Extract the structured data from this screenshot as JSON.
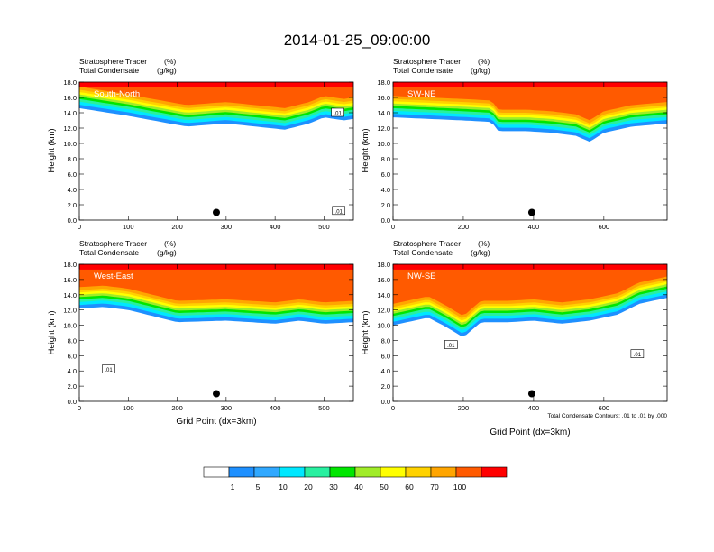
{
  "title": "2014-01-25_09:00:00",
  "panel_header": {
    "line1": "Stratosphere Tracer",
    "line1_unit": "(%)",
    "line2": "Total Condensate",
    "line2_unit": "(g/kg)"
  },
  "ylabel": "Height (km)",
  "xlabel": "Grid Point (dx=3km)",
  "contour_note": "Total Condensate Contours: .01 to .01 by .000",
  "colors": {
    "levels": [
      "#ffffff",
      "#1e90ff",
      "#30a8ff",
      "#00e8ff",
      "#28f0a0",
      "#00e600",
      "#a0ec28",
      "#ffff00",
      "#ffd200",
      "#ffa500",
      "#ff5a00",
      "#ff0000"
    ]
  },
  "colorbar": {
    "labels": [
      "1",
      "5",
      "10",
      "20",
      "30",
      "40",
      "50",
      "60",
      "70",
      "100"
    ]
  },
  "chart_data": [
    {
      "type": "heatmap",
      "name": "South-North",
      "xlim": [
        0,
        560
      ],
      "ylim": [
        0,
        18
      ],
      "xticks": [
        0,
        100,
        200,
        300,
        400,
        500
      ],
      "yticks": [
        "0.0",
        "2.0",
        "4.0",
        "6.0",
        "8.0",
        "10.0",
        "12.0",
        "14.0",
        "16.0",
        "18.0"
      ],
      "marker": {
        "x": 280,
        "y": 1.0
      },
      "contour_labels": [
        {
          "text": ".01",
          "x": 528,
          "y": 14.0
        },
        {
          "text": ".01",
          "x": 530,
          "y": 1.2
        }
      ],
      "tracer_bottom_km": [
        [
          0,
          14.6
        ],
        [
          40,
          14.2
        ],
        [
          100,
          13.6
        ],
        [
          150,
          13.0
        ],
        [
          220,
          12.2
        ],
        [
          300,
          12.6
        ],
        [
          360,
          12.2
        ],
        [
          420,
          11.8
        ],
        [
          470,
          12.6
        ],
        [
          500,
          13.4
        ],
        [
          540,
          13.0
        ],
        [
          560,
          13.2
        ]
      ]
    },
    {
      "type": "heatmap",
      "name": "SW-NE",
      "xlim": [
        0,
        780
      ],
      "ylim": [
        0,
        18
      ],
      "xticks": [
        0,
        200,
        400,
        600
      ],
      "yticks": [
        "0.0",
        "2.0",
        "4.0",
        "6.0",
        "8.0",
        "10.0",
        "12.0",
        "14.0",
        "16.0",
        "18.0"
      ],
      "marker": {
        "x": 395,
        "y": 1.0
      },
      "contour_labels": [],
      "tracer_bottom_km": [
        [
          0,
          13.4
        ],
        [
          100,
          13.2
        ],
        [
          200,
          13.0
        ],
        [
          280,
          12.8
        ],
        [
          300,
          11.6
        ],
        [
          380,
          11.6
        ],
        [
          450,
          11.4
        ],
        [
          520,
          11.0
        ],
        [
          560,
          10.2
        ],
        [
          600,
          11.4
        ],
        [
          680,
          12.2
        ],
        [
          780,
          12.6
        ]
      ]
    },
    {
      "type": "heatmap",
      "name": "West-East",
      "xlim": [
        0,
        560
      ],
      "ylim": [
        0,
        18
      ],
      "xticks": [
        0,
        100,
        200,
        300,
        400,
        500
      ],
      "yticks": [
        "0.0",
        "2.0",
        "4.0",
        "6.0",
        "8.0",
        "10.0",
        "12.0",
        "14.0",
        "16.0",
        "18.0"
      ],
      "marker": {
        "x": 280,
        "y": 1.0
      },
      "contour_labels": [
        {
          "text": ".01",
          "x": 60,
          "y": 4.2
        }
      ],
      "tracer_bottom_km": [
        [
          0,
          12.2
        ],
        [
          50,
          12.4
        ],
        [
          100,
          12.0
        ],
        [
          150,
          11.2
        ],
        [
          200,
          10.4
        ],
        [
          300,
          10.6
        ],
        [
          400,
          10.2
        ],
        [
          450,
          10.6
        ],
        [
          500,
          10.2
        ],
        [
          560,
          10.4
        ]
      ]
    },
    {
      "type": "heatmap",
      "name": "NW-SE",
      "xlim": [
        0,
        780
      ],
      "ylim": [
        0,
        18
      ],
      "xticks": [
        0,
        200,
        400,
        600
      ],
      "yticks": [
        "0.0",
        "2.0",
        "4.0",
        "6.0",
        "8.0",
        "10.0",
        "12.0",
        "14.0",
        "16.0",
        "18.0"
      ],
      "marker": {
        "x": 395,
        "y": 1.0
      },
      "contour_labels": [
        {
          "text": ".01",
          "x": 165,
          "y": 7.4
        },
        {
          "text": ".01",
          "x": 695,
          "y": 6.2
        }
      ],
      "tracer_bottom_km": [
        [
          0,
          10.0
        ],
        [
          100,
          11.0
        ],
        [
          150,
          9.8
        ],
        [
          200,
          8.4
        ],
        [
          250,
          10.4
        ],
        [
          330,
          10.4
        ],
        [
          400,
          10.6
        ],
        [
          480,
          10.2
        ],
        [
          560,
          10.6
        ],
        [
          640,
          11.4
        ],
        [
          700,
          12.8
        ],
        [
          780,
          13.6
        ]
      ]
    }
  ]
}
